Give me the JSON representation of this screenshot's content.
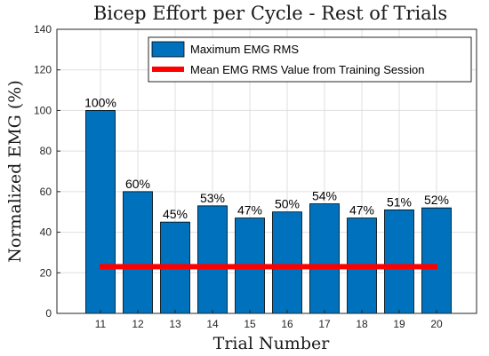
{
  "chart_data": {
    "type": "bar",
    "title": "Bicep Effort per Cycle - Rest of Trials",
    "xlabel": "Trial Number",
    "ylabel": "Normalized EMG (%)",
    "ylim": [
      0,
      140
    ],
    "yticks": [
      0,
      20,
      40,
      60,
      80,
      100,
      120,
      140
    ],
    "grid": true,
    "legend_position": "top-right",
    "categories": [
      "11",
      "12",
      "13",
      "14",
      "15",
      "16",
      "17",
      "18",
      "19",
      "20"
    ],
    "series": [
      {
        "name": "Maximum EMG RMS",
        "type": "bar",
        "color": "#0072BD",
        "values": [
          100,
          60,
          45,
          53,
          47,
          50,
          54,
          47,
          51,
          52
        ],
        "labels": [
          "100%",
          "60%",
          "45%",
          "53%",
          "47%",
          "50%",
          "54%",
          "47%",
          "51%",
          "52%"
        ]
      },
      {
        "name": "Mean EMG RMS Value from Training Session",
        "type": "line",
        "color": "#FF0000",
        "value": 23
      }
    ]
  }
}
